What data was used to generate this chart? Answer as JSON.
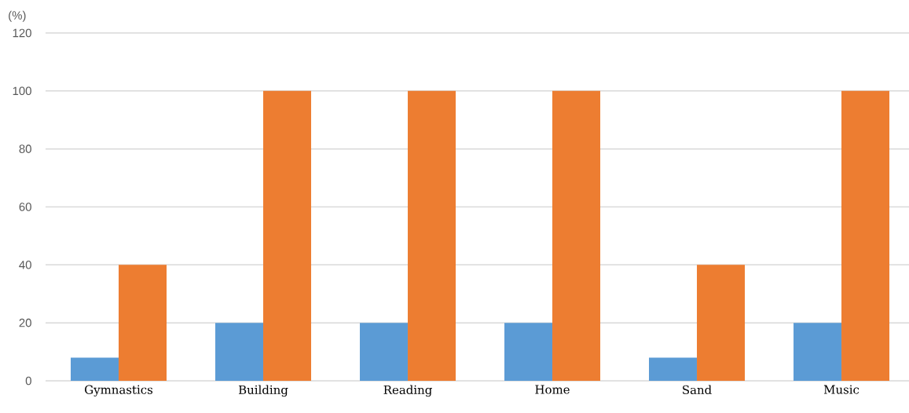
{
  "chart_data": {
    "type": "bar",
    "ylabel": "(%)",
    "categories": [
      "Gymnastics",
      "Building",
      "Reading",
      "Home",
      "Sand",
      "Music"
    ],
    "series": [
      {
        "color": "#5b9bd5",
        "values": [
          8,
          20,
          20,
          20,
          8,
          20
        ]
      },
      {
        "color": "#ed7d31",
        "values": [
          40,
          100,
          100,
          100,
          40,
          100
        ]
      }
    ],
    "ylim": [
      0,
      120
    ],
    "yticks": [
      0,
      20,
      40,
      60,
      80,
      100,
      120
    ],
    "grid": "y"
  }
}
